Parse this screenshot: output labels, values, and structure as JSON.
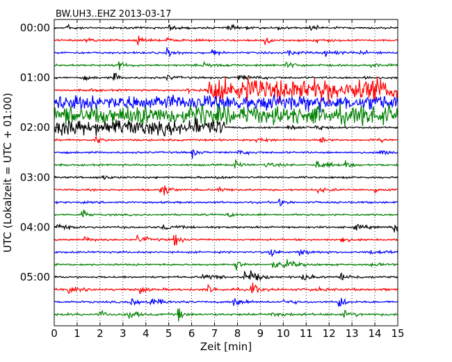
{
  "chart_data": {
    "type": "line",
    "title": "BW.UH3..EHZ 2013-03-17",
    "xlabel": "Zeit  [min]",
    "ylabel": "UTC (Lokalzeit = UTC + 01:00)",
    "xlim": [
      0,
      15
    ],
    "x_ticks": [
      "0",
      "1",
      "2",
      "3",
      "4",
      "5",
      "6",
      "7",
      "8",
      "9",
      "10",
      "11",
      "12",
      "13",
      "14",
      "15"
    ],
    "y_ticks": [
      "00:00",
      "01:00",
      "02:00",
      "03:00",
      "04:00",
      "05:00"
    ],
    "grid": "dotted vertical lines at each minute",
    "trace_colors": [
      "#000000",
      "#ff0000",
      "#0000ff",
      "#008000"
    ],
    "traces": [
      {
        "label": "00:00",
        "color": "#000000",
        "noise": 1.0,
        "events": [
          [
            0.5,
            6,
            0.2
          ],
          [
            5,
            3,
            0.3
          ],
          [
            7.5,
            3,
            0.4
          ],
          [
            9.8,
            7,
            0.15
          ],
          [
            11.1,
            3,
            0.4
          ]
        ]
      },
      {
        "label": "",
        "color": "#ff0000",
        "noise": 1.0,
        "events": [
          [
            1.3,
            2.5,
            0.4
          ],
          [
            3.6,
            8,
            0.2
          ],
          [
            4.9,
            2.5,
            0.3
          ],
          [
            9.2,
            5,
            0.2
          ],
          [
            11.3,
            2,
            0.5
          ]
        ]
      },
      {
        "label": "",
        "color": "#0000ff",
        "noise": 1.0,
        "events": [
          [
            4.9,
            5,
            0.3
          ],
          [
            6.9,
            4,
            0.2
          ],
          [
            10.2,
            3,
            0.4
          ],
          [
            11.8,
            4,
            0.4
          ],
          [
            13.3,
            2,
            0.5
          ]
        ]
      },
      {
        "label": "",
        "color": "#008000",
        "noise": 1.0,
        "events": [
          [
            2.8,
            5,
            0.3
          ],
          [
            6.5,
            3,
            0.5
          ],
          [
            10.1,
            3,
            0.5
          ],
          [
            13.8,
            2,
            0.4
          ]
        ]
      },
      {
        "label": "01:00",
        "color": "#000000",
        "noise": 1.0,
        "events": [
          [
            1.3,
            2,
            0.3
          ],
          [
            2.6,
            7,
            0.15
          ],
          [
            4.9,
            3,
            0.3
          ],
          [
            8,
            3,
            0.6
          ],
          [
            13.5,
            2,
            0.3
          ]
        ]
      },
      {
        "label": "",
        "color": "#ff0000",
        "noise": 1.0,
        "events": [
          [
            1.5,
            3,
            0.2
          ],
          [
            5.8,
            3,
            0.4
          ]
        ],
        "burst_from": 6.7,
        "burst_to": 15,
        "burst_amp": 14
      },
      {
        "label": "",
        "color": "#0000ff",
        "noise": 8.0,
        "events": [],
        "burst_from": 0,
        "burst_to": 15,
        "burst_amp": 9
      },
      {
        "label": "",
        "color": "#008000",
        "noise": 10.0,
        "events": [],
        "burst_from": 0,
        "burst_to": 15,
        "burst_amp": 11
      },
      {
        "label": "02:00",
        "color": "#000000",
        "noise": 1.0,
        "events": [
          [
            10.2,
            3,
            0.4
          ],
          [
            11.4,
            3,
            0.3
          ]
        ],
        "burst_from": 0,
        "burst_to": 7.5,
        "burst_amp": 10
      },
      {
        "label": "",
        "color": "#ff0000",
        "noise": 1.0,
        "events": [
          [
            1.8,
            5,
            0.2
          ],
          [
            8.8,
            3,
            0.4
          ],
          [
            11.6,
            8,
            0.15
          ],
          [
            14.2,
            2,
            0.3
          ]
        ]
      },
      {
        "label": "",
        "color": "#0000ff",
        "noise": 1.0,
        "events": [
          [
            6,
            6,
            0.2
          ],
          [
            8,
            2,
            0.5
          ],
          [
            14.2,
            4,
            0.4
          ]
        ]
      },
      {
        "label": "",
        "color": "#008000",
        "noise": 1.0,
        "events": [
          [
            7.9,
            8,
            0.15
          ],
          [
            9.2,
            3,
            0.4
          ],
          [
            11.4,
            5,
            0.5
          ],
          [
            12.7,
            5,
            0.2
          ]
        ]
      },
      {
        "label": "03:00",
        "color": "#000000",
        "noise": 1.0,
        "events": [
          [
            2.1,
            3,
            0.2
          ],
          [
            7,
            2,
            0.3
          ]
        ]
      },
      {
        "label": "",
        "color": "#ff0000",
        "noise": 1.0,
        "events": [
          [
            4.6,
            8,
            0.2
          ],
          [
            4.8,
            6,
            0.2
          ],
          [
            7.1,
            3,
            0.4
          ],
          [
            11.5,
            3,
            0.4
          ],
          [
            14,
            3,
            0.3
          ]
        ]
      },
      {
        "label": "",
        "color": "#0000ff",
        "noise": 1.0,
        "events": [
          [
            9.8,
            7,
            0.2
          ]
        ]
      },
      {
        "label": "",
        "color": "#008000",
        "noise": 1.0,
        "events": [
          [
            1.2,
            10,
            0.15
          ],
          [
            7.5,
            2,
            0.4
          ]
        ]
      },
      {
        "label": "04:00",
        "color": "#000000",
        "noise": 1.0,
        "events": [
          [
            0.1,
            6,
            0.3
          ],
          [
            4.7,
            4,
            0.4
          ],
          [
            13.1,
            3,
            0.4
          ],
          [
            14.8,
            9,
            0.15
          ]
        ]
      },
      {
        "label": "",
        "color": "#ff0000",
        "noise": 1.0,
        "events": [
          [
            1.3,
            3,
            0.3
          ],
          [
            3.6,
            5,
            0.4
          ],
          [
            5.2,
            12,
            0.2
          ],
          [
            12.5,
            9,
            0.15
          ]
        ]
      },
      {
        "label": "",
        "color": "#0000ff",
        "noise": 1.0,
        "events": [
          [
            9.4,
            7,
            0.2
          ],
          [
            10.6,
            5,
            0.4
          ],
          [
            13.8,
            3,
            0.4
          ]
        ]
      },
      {
        "label": "",
        "color": "#008000",
        "noise": 1.0,
        "events": [
          [
            7.9,
            9,
            0.15
          ],
          [
            9.5,
            6,
            0.3
          ],
          [
            10,
            5,
            0.5
          ],
          [
            13.8,
            2,
            0.4
          ]
        ]
      },
      {
        "label": "05:00",
        "color": "#000000",
        "noise": 1.0,
        "events": [
          [
            6.5,
            5,
            0.4
          ],
          [
            8.3,
            12,
            0.3
          ],
          [
            8.6,
            5,
            0.3
          ],
          [
            10.8,
            5,
            0.3
          ],
          [
            12.5,
            5,
            0.4
          ]
        ]
      },
      {
        "label": "",
        "color": "#ff0000",
        "noise": 1.2,
        "events": [
          [
            0.6,
            4,
            0.3
          ],
          [
            3.7,
            6,
            0.2
          ],
          [
            6.7,
            6,
            0.2
          ],
          [
            8.6,
            12,
            0.2
          ],
          [
            11.2,
            3,
            0.3
          ]
        ]
      },
      {
        "label": "",
        "color": "#0000ff",
        "noise": 1.0,
        "events": [
          [
            3.3,
            12,
            0.2
          ],
          [
            4,
            5,
            0.6
          ],
          [
            7.8,
            8,
            0.3
          ],
          [
            10,
            3,
            0.4
          ],
          [
            12.4,
            11,
            0.2
          ]
        ]
      },
      {
        "label": "",
        "color": "#008000",
        "noise": 1.2,
        "events": [
          [
            2,
            6,
            0.2
          ],
          [
            3.2,
            11,
            0.2
          ],
          [
            5.4,
            11,
            0.15
          ],
          [
            9.5,
            3,
            0.4
          ],
          [
            12.6,
            4,
            0.4
          ]
        ]
      }
    ]
  }
}
